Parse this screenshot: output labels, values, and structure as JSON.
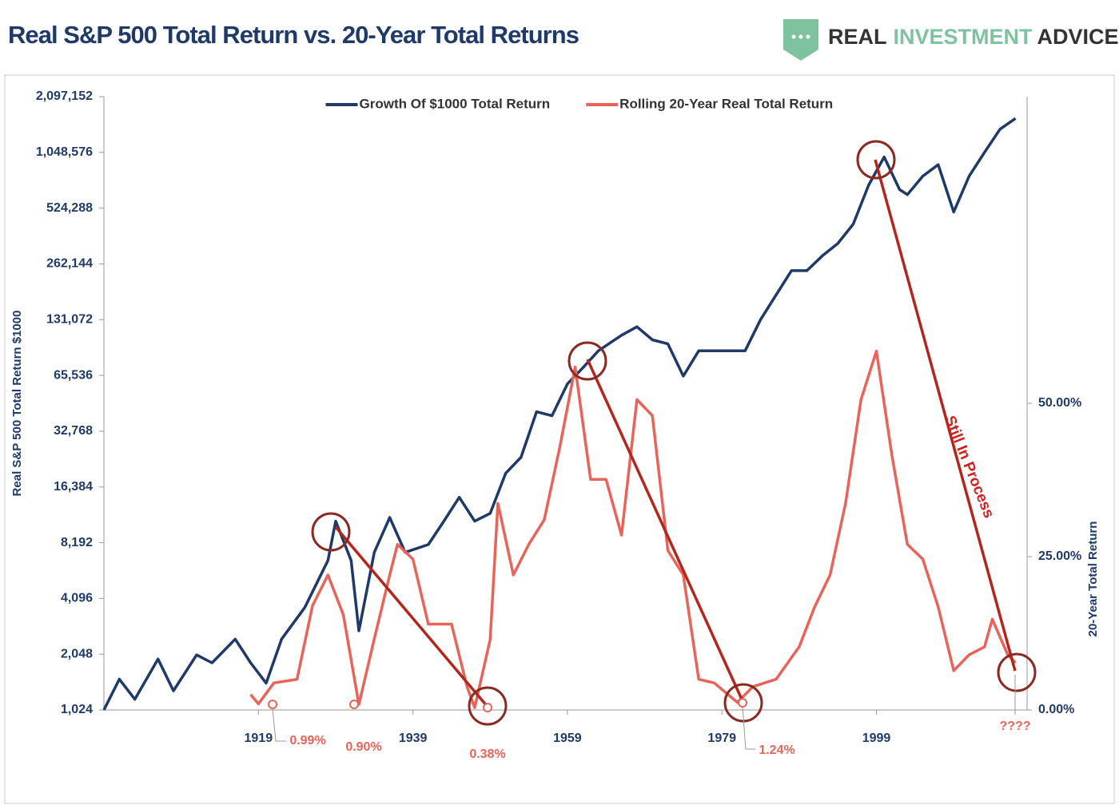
{
  "chart_data": {
    "type": "line",
    "title": "Real S&P 500 Total Return vs. 20-Year Total Returns",
    "logo": [
      "REAL",
      "INVESTMENT",
      "ADVICE"
    ],
    "ylabel": "Real S&P 500 Total Return $1000",
    "y2label": "20-Year Total Return",
    "ylog": true,
    "ylim": [
      1024,
      2097152
    ],
    "yticks": [
      {
        "value": 1024,
        "label": "1,024"
      },
      {
        "value": 2048,
        "label": "2,048"
      },
      {
        "value": 4096,
        "label": "4,096"
      },
      {
        "value": 8192,
        "label": "8,192"
      },
      {
        "value": 16384,
        "label": "16,384"
      },
      {
        "value": 32768,
        "label": "32,768"
      },
      {
        "value": 65536,
        "label": "65,536"
      },
      {
        "value": 131072,
        "label": "131,072"
      },
      {
        "value": 262144,
        "label": "262,144"
      },
      {
        "value": 524288,
        "label": "524,288"
      },
      {
        "value": 1048576,
        "label": "1,048,576"
      },
      {
        "value": 2097152,
        "label": "2,097,152"
      }
    ],
    "y2lim": [
      0,
      100
    ],
    "y2ticks": [
      {
        "value": 0,
        "label": "0.00%"
      },
      {
        "value": 25,
        "label": "25.00%"
      },
      {
        "value": 50,
        "label": "50.00%"
      }
    ],
    "xlim": [
      1899,
      2018.5
    ],
    "xticks": [
      1919,
      1939,
      1959,
      1979,
      1999
    ],
    "legend": "upper center",
    "series": [
      {
        "name": "Growth Of $1000 Total Return",
        "color": "#1f3a68",
        "axis": "y",
        "x": [
          1899,
          1901,
          1903,
          1906,
          1908,
          1911,
          1913,
          1916,
          1918,
          1920,
          1922,
          1925,
          1928,
          1929,
          1931,
          1932,
          1934,
          1936,
          1938,
          1941,
          1943,
          1945,
          1947,
          1949,
          1951,
          1953,
          1955,
          1957,
          1959,
          1961,
          1963,
          1966,
          1968,
          1970,
          1972,
          1974,
          1976,
          1978,
          1980,
          1982,
          1984,
          1986,
          1988,
          1990,
          1992,
          1994,
          1996,
          1998,
          2000,
          2002,
          2003,
          2005,
          2007,
          2009,
          2011,
          2013,
          2015,
          2017
        ],
        "values": [
          1024,
          1500,
          1170,
          1930,
          1300,
          2030,
          1840,
          2470,
          1840,
          1430,
          2470,
          3660,
          6570,
          10700,
          6570,
          2740,
          7270,
          11200,
          7270,
          8000,
          10700,
          14400,
          10700,
          11800,
          19400,
          23700,
          41700,
          39700,
          59000,
          72000,
          89000,
          108000,
          120000,
          102000,
          97000,
          65000,
          89000,
          89000,
          89000,
          89000,
          131000,
          178000,
          241000,
          241000,
          290000,
          338000,
          430000,
          700000,
          990000,
          660000,
          620000,
          780000,
          900000,
          500000,
          780000,
          1050000,
          1400000,
          1600000
        ]
      },
      {
        "name": "Rolling 20-Year Real Total Return",
        "color": "#e8645a",
        "axis": "y2",
        "x": [
          1918,
          1919,
          1921,
          1924,
          1926,
          1928,
          1930,
          1932,
          1934,
          1936,
          1937,
          1939,
          1941,
          1944,
          1946,
          1947,
          1949,
          1950,
          1952,
          1954,
          1956,
          1958,
          1960,
          1962,
          1964,
          1966,
          1968,
          1970,
          1972,
          1974,
          1976,
          1978,
          1981,
          1983,
          1986,
          1989,
          1991,
          1993,
          1995,
          1997,
          1999,
          2001,
          2003,
          2005,
          2007,
          2009,
          2011,
          2013,
          2014,
          2016,
          2017
        ],
        "values": [
          2.5,
          0.99,
          4.4,
          5,
          17,
          22,
          15.5,
          0.9,
          11.6,
          22,
          27,
          24.6,
          14,
          14,
          3.8,
          0.38,
          11.5,
          33.7,
          22,
          27,
          31,
          42.8,
          55.9,
          37.6,
          37.6,
          28.5,
          50.6,
          48,
          26,
          22,
          5,
          4.4,
          1.24,
          3.8,
          5,
          10.3,
          16.8,
          22,
          33.7,
          50.6,
          58.5,
          41.5,
          27,
          24.6,
          16.8,
          6.4,
          9,
          10.3,
          14.8,
          9,
          7.7
        ]
      }
    ],
    "annotations": [
      "0.99%",
      "0.90%",
      "0.38%",
      "1.24%",
      "????",
      "Still In Process"
    ]
  }
}
